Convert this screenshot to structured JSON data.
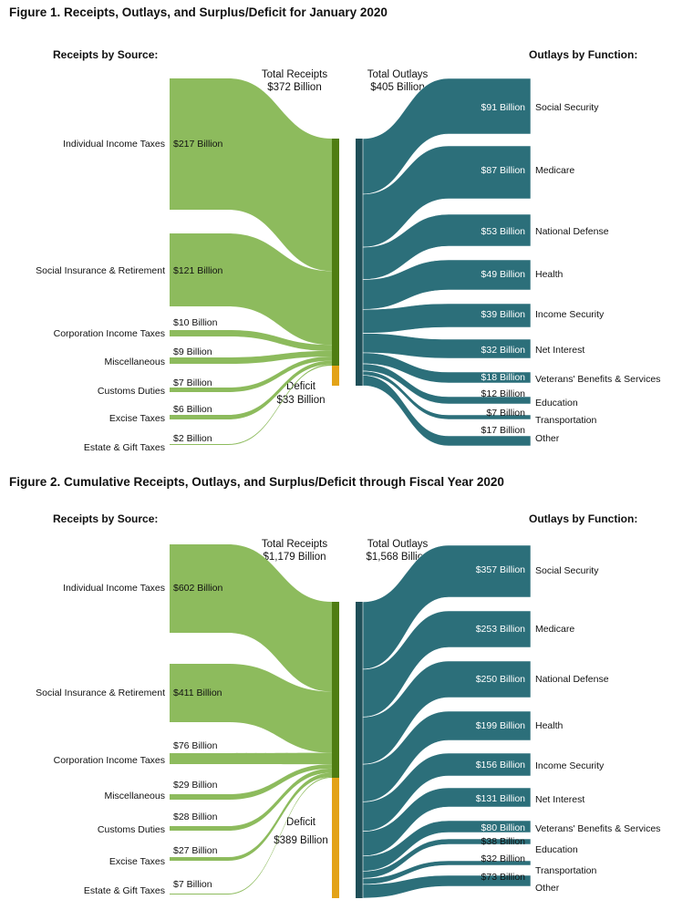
{
  "colors": {
    "receipt_flow": "#8dbb5d",
    "receipt_bar": "#4f7d12",
    "deficit": "#e3a318",
    "outlay_flow": "#2c6f7a",
    "outlay_bar": "#1f4f58"
  },
  "figures": [
    {
      "title": "Figure 1. Receipts, Outlays, and Surplus/Deficit for January 2020",
      "left_header": "Receipts by Source:",
      "right_header": "Outlays by Function:",
      "total_receipts_label": "Total Receipts",
      "total_receipts_value": "$372 Billion",
      "total_outlays_label": "Total Outlays",
      "total_outlays_value": "$405 Billion",
      "deficit_label": "Deficit",
      "deficit_value": "$33 Billion",
      "receipts": [
        {
          "name": "Individual Income Taxes",
          "value": 217,
          "label": "$217 Billion"
        },
        {
          "name": "Social Insurance & Retirement",
          "value": 121,
          "label": "$121 Billion"
        },
        {
          "name": "Corporation Income Taxes",
          "value": 10,
          "label": "$10 Billion"
        },
        {
          "name": "Miscellaneous",
          "value": 9,
          "label": "$9 Billion"
        },
        {
          "name": "Customs Duties",
          "value": 7,
          "label": "$7 Billion"
        },
        {
          "name": "Excise Taxes",
          "value": 6,
          "label": "$6 Billion"
        },
        {
          "name": "Estate & Gift Taxes",
          "value": 2,
          "label": "$2 Billion"
        }
      ],
      "outlays": [
        {
          "name": "Social Security",
          "value": 91,
          "label": "$91 Billion"
        },
        {
          "name": "Medicare",
          "value": 87,
          "label": "$87 Billion"
        },
        {
          "name": "National Defense",
          "value": 53,
          "label": "$53 Billion"
        },
        {
          "name": "Health",
          "value": 49,
          "label": "$49 Billion"
        },
        {
          "name": "Income Security",
          "value": 39,
          "label": "$39 Billion"
        },
        {
          "name": "Net Interest",
          "value": 32,
          "label": "$32 Billion"
        },
        {
          "name": "Veterans' Benefits & Services",
          "value": 18,
          "label": "$18 Billion"
        },
        {
          "name": "Education",
          "value": 12,
          "label": "$12 Billion"
        },
        {
          "name": "Transportation",
          "value": 7,
          "label": "$7 Billion"
        },
        {
          "name": "Other",
          "value": 17,
          "label": "$17 Billion"
        }
      ]
    },
    {
      "title": "Figure 2. Cumulative Receipts, Outlays, and Surplus/Deficit through Fiscal Year 2020",
      "left_header": "Receipts by Source:",
      "right_header": "Outlays by Function:",
      "total_receipts_label": "Total Receipts",
      "total_receipts_value": "$1,179 Billion",
      "total_outlays_label": "Total Outlays",
      "total_outlays_value": "$1,568 Billion",
      "deficit_label": "Deficit",
      "deficit_value": "$389 Billion",
      "receipts": [
        {
          "name": "Individual Income Taxes",
          "value": 602,
          "label": "$602 Billion"
        },
        {
          "name": "Social Insurance & Retirement",
          "value": 411,
          "label": "$411 Billion"
        },
        {
          "name": "Corporation Income Taxes",
          "value": 76,
          "label": "$76 Billion"
        },
        {
          "name": "Miscellaneous",
          "value": 29,
          "label": "$29 Billion"
        },
        {
          "name": "Customs Duties",
          "value": 28,
          "label": "$28 Billion"
        },
        {
          "name": "Excise Taxes",
          "value": 27,
          "label": "$27 Billion"
        },
        {
          "name": "Estate & Gift Taxes",
          "value": 7,
          "label": "$7 Billion"
        }
      ],
      "outlays": [
        {
          "name": "Social Security",
          "value": 357,
          "label": "$357 Billion"
        },
        {
          "name": "Medicare",
          "value": 253,
          "label": "$253 Billion"
        },
        {
          "name": "National Defense",
          "value": 250,
          "label": "$250 Billion"
        },
        {
          "name": "Health",
          "value": 199,
          "label": "$199 Billion"
        },
        {
          "name": "Income Security",
          "value": 156,
          "label": "$156 Billion"
        },
        {
          "name": "Net Interest",
          "value": 131,
          "label": "$131 Billion"
        },
        {
          "name": "Veterans' Benefits & Services",
          "value": 80,
          "label": "$80 Billion"
        },
        {
          "name": "Education",
          "value": 38,
          "label": "$38 Billion"
        },
        {
          "name": "Transportation",
          "value": 32,
          "label": "$32 Billion"
        },
        {
          "name": "Other",
          "value": 73,
          "label": "$73 Billion"
        }
      ]
    }
  ]
}
